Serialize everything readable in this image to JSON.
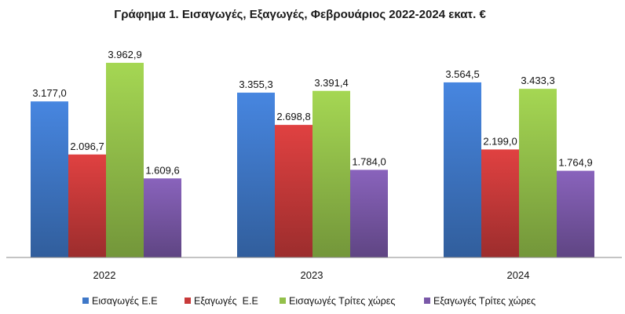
{
  "chart_data": {
    "type": "bar",
    "title": "Γράφημα 1. Εισαγωγές, Εξαγωγές, Φεβρουάριος 2022-2024 εκατ. €",
    "categories": [
      "2022",
      "2023",
      "2024"
    ],
    "series": [
      {
        "name": "Εισαγωγές Ε.Ε",
        "values": [
          3177.0,
          3355.3,
          3564.5
        ],
        "labels": [
          "3.177,0",
          "3.355,3",
          "3.564,5"
        ],
        "color": "#3f78c8"
      },
      {
        "name": "Εξαγωγές  Ε.Ε",
        "values": [
          2096.7,
          2698.8,
          2199.0
        ],
        "labels": [
          "2.096,7",
          "2.698,8",
          "2.199,0"
        ],
        "color": "#c83a3a"
      },
      {
        "name": "Εισαγωγές Τρίτες χώρες",
        "values": [
          3962.9,
          3391.4,
          3433.3
        ],
        "labels": [
          "3.962,9",
          "3.391,4",
          "3.433,3"
        ],
        "color": "#93c04a"
      },
      {
        "name": "Εξαγωγές Τρίτες χώρες",
        "values": [
          1609.6,
          1784.0,
          1764.9
        ],
        "labels": [
          "1.609,6",
          "1.784,0",
          "1.764,9"
        ],
        "color": "#7a58a8"
      }
    ],
    "ylim": [
      0,
      4200
    ],
    "grid": false,
    "legend": "bottom"
  }
}
